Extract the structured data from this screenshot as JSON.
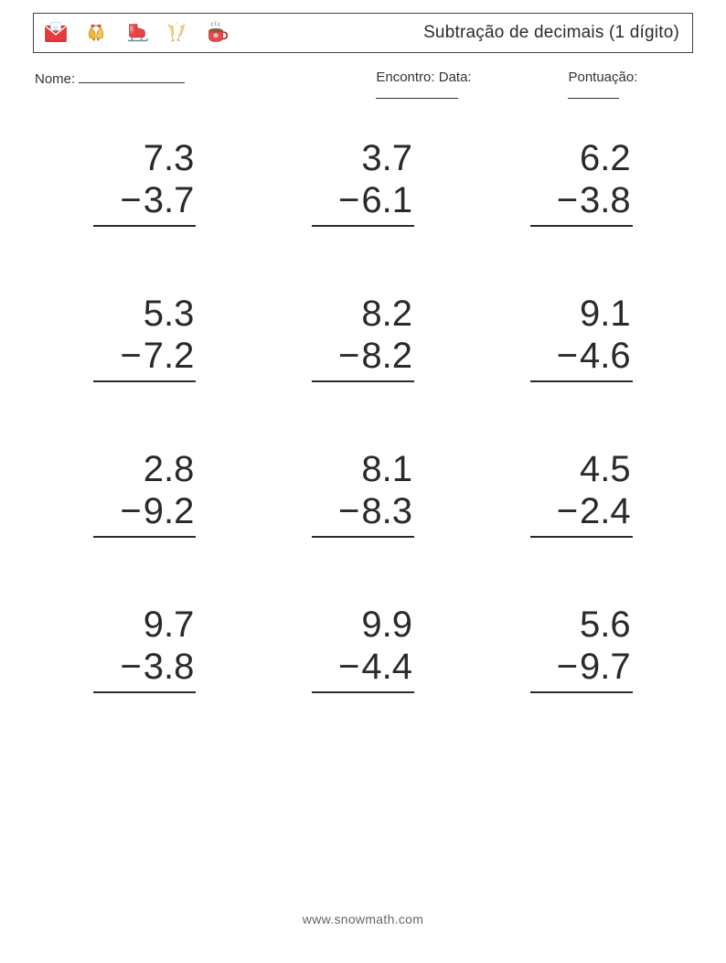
{
  "header": {
    "title": "Subtração de decimais (1 dígito)",
    "icons": [
      {
        "name": "wish-card-icon"
      },
      {
        "name": "bells-icon"
      },
      {
        "name": "ice-skate-icon"
      },
      {
        "name": "champagne-glasses-icon"
      },
      {
        "name": "hot-cup-icon"
      }
    ]
  },
  "meta": {
    "nome_label": "Nome:",
    "encontro_label": "Encontro: Data:",
    "pontuacao_label": "Pontuação:",
    "blank_widths": {
      "nome": 116,
      "data": 90,
      "pontuacao": 56
    }
  },
  "worksheet": {
    "type": "subtraction-vertical",
    "operator": "−",
    "number_fontsize": 40,
    "text_color": "#2a2a2a",
    "rule_color": "#2a2a2a",
    "columns": 3,
    "row_gap": 72,
    "problems": [
      {
        "a": "7.3",
        "b": "3.7"
      },
      {
        "a": "3.7",
        "b": "6.1"
      },
      {
        "a": "6.2",
        "b": "3.8"
      },
      {
        "a": "5.3",
        "b": "7.2"
      },
      {
        "a": "8.2",
        "b": "8.2"
      },
      {
        "a": "9.1",
        "b": "4.6"
      },
      {
        "a": "2.8",
        "b": "9.2"
      },
      {
        "a": "8.1",
        "b": "8.3"
      },
      {
        "a": "4.5",
        "b": "2.4"
      },
      {
        "a": "9.7",
        "b": "3.8"
      },
      {
        "a": "9.9",
        "b": "4.4"
      },
      {
        "a": "5.6",
        "b": "9.7"
      }
    ]
  },
  "footer": {
    "text": "www.snowmath.com"
  },
  "style": {
    "page_bg": "#ffffff",
    "border_color": "#444444",
    "meta_fontsize": 15,
    "title_fontsize": 19
  }
}
